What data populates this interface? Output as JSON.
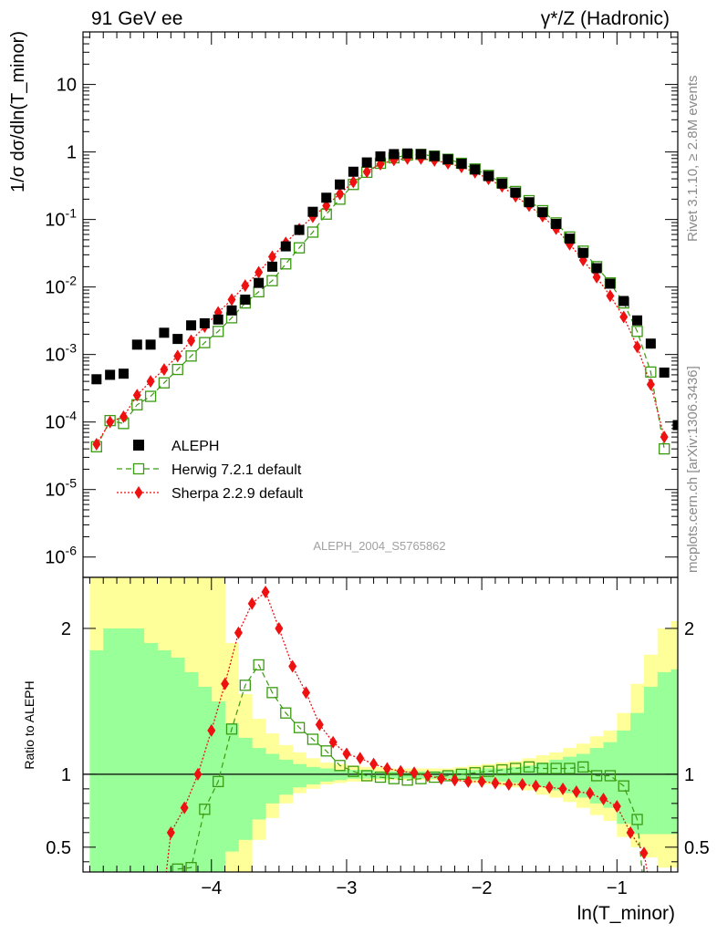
{
  "header": {
    "left": "91 GeV ee",
    "right": "γ*/Z (Hadronic)"
  },
  "side_labels": {
    "rivet": "Rivet 3.1.10, ≥ 2.8M events",
    "mcplots": "mcplots.cern.ch [arXiv:1306.3436]"
  },
  "watermark": "ALEPH_2004_S5765862",
  "colors": {
    "data": "#000000",
    "herwig": "#3a9a10",
    "sherpa": "#ee1111",
    "band_inner": "#99ff99",
    "band_outer": "#ffff99"
  },
  "chart_data": [
    {
      "type": "scatter",
      "panel": "main",
      "ylabel": "1/σ dσ/dln(T_minor)",
      "yscale": "log",
      "ylim": [
        5e-07,
        60
      ],
      "xlim": [
        -4.95,
        -0.55
      ],
      "yticks": [
        "10^-6",
        "10^-5",
        "10^-4",
        "10^-3",
        "10^-2",
        "10^-1",
        "1",
        "10"
      ],
      "legend_position": "lower-left",
      "series": [
        {
          "name": "ALEPH",
          "style": "filled-square",
          "x": [
            -4.85,
            -4.75,
            -4.65,
            -4.55,
            -4.45,
            -4.35,
            -4.25,
            -4.15,
            -4.05,
            -3.95,
            -3.85,
            -3.75,
            -3.65,
            -3.55,
            -3.45,
            -3.35,
            -3.25,
            -3.15,
            -3.05,
            -2.95,
            -2.85,
            -2.75,
            -2.65,
            -2.55,
            -2.45,
            -2.35,
            -2.25,
            -2.15,
            -2.05,
            -1.95,
            -1.85,
            -1.75,
            -1.65,
            -1.55,
            -1.45,
            -1.35,
            -1.25,
            -1.15,
            -1.05,
            -0.95,
            -0.85,
            -0.75,
            -0.65,
            -0.55
          ],
          "y": [
            0.00043,
            0.0005,
            0.00052,
            0.0014,
            0.0014,
            0.0021,
            0.0017,
            0.0027,
            0.0029,
            0.0033,
            0.0045,
            0.0065,
            0.0115,
            0.02,
            0.04,
            0.07,
            0.13,
            0.21,
            0.33,
            0.51,
            0.7,
            0.86,
            0.93,
            0.95,
            0.93,
            0.87,
            0.78,
            0.67,
            0.55,
            0.44,
            0.34,
            0.25,
            0.18,
            0.128,
            0.086,
            0.052,
            0.032,
            0.019,
            0.0112,
            0.0062,
            0.0032,
            0.00145,
            0.00054,
            9e-05
          ]
        },
        {
          "name": "Herwig 7.2.1 default",
          "style": "open-square-dashed",
          "x": [
            -4.85,
            -4.75,
            -4.65,
            -4.55,
            -4.45,
            -4.35,
            -4.25,
            -4.15,
            -4.05,
            -3.95,
            -3.85,
            -3.75,
            -3.65,
            -3.55,
            -3.45,
            -3.35,
            -3.25,
            -3.15,
            -3.05,
            -2.95,
            -2.85,
            -2.75,
            -2.65,
            -2.55,
            -2.45,
            -2.35,
            -2.25,
            -2.15,
            -2.05,
            -1.95,
            -1.85,
            -1.75,
            -1.65,
            -1.55,
            -1.45,
            -1.35,
            -1.25,
            -1.15,
            -1.05,
            -0.95,
            -0.85,
            -0.75,
            -0.65
          ],
          "y": [
            4.3e-05,
            0.000105,
            9.5e-05,
            0.00018,
            0.00024,
            0.00038,
            0.0006,
            0.00095,
            0.0015,
            0.0022,
            0.0035,
            0.0058,
            0.0085,
            0.0124,
            0.022,
            0.038,
            0.065,
            0.12,
            0.2,
            0.33,
            0.5,
            0.68,
            0.82,
            0.9,
            0.92,
            0.87,
            0.78,
            0.68,
            0.56,
            0.45,
            0.35,
            0.26,
            0.19,
            0.135,
            0.089,
            0.055,
            0.034,
            0.02,
            0.0115,
            0.0058,
            0.0022,
            0.00055,
            4e-05
          ]
        },
        {
          "name": "Sherpa 2.2.9 default",
          "style": "diamond-dotted",
          "x": [
            -4.85,
            -4.75,
            -4.65,
            -4.55,
            -4.45,
            -4.35,
            -4.25,
            -4.15,
            -4.05,
            -3.95,
            -3.85,
            -3.75,
            -3.65,
            -3.55,
            -3.45,
            -3.35,
            -3.25,
            -3.15,
            -3.05,
            -2.95,
            -2.85,
            -2.75,
            -2.65,
            -2.55,
            -2.45,
            -2.35,
            -2.25,
            -2.15,
            -2.05,
            -1.95,
            -1.85,
            -1.75,
            -1.65,
            -1.55,
            -1.45,
            -1.35,
            -1.25,
            -1.15,
            -1.05,
            -0.95,
            -0.85,
            -0.75,
            -0.65
          ],
          "y": [
            4.7e-05,
            0.0001,
            0.00012,
            0.00025,
            0.0004,
            0.0006,
            0.00095,
            0.0016,
            0.0026,
            0.0042,
            0.0065,
            0.0105,
            0.0165,
            0.028,
            0.045,
            0.072,
            0.11,
            0.16,
            0.24,
            0.36,
            0.51,
            0.66,
            0.76,
            0.8,
            0.8,
            0.75,
            0.68,
            0.6,
            0.5,
            0.4,
            0.31,
            0.22,
            0.16,
            0.112,
            0.073,
            0.043,
            0.025,
            0.014,
            0.0074,
            0.0036,
            0.0013,
            0.00036,
            6e-05
          ]
        }
      ]
    },
    {
      "type": "line",
      "panel": "ratio",
      "ylabel": "Ratio to ALEPH",
      "xlabel": "ln(T_minor)",
      "ylim": [
        0.33,
        2.35
      ],
      "xlim": [
        -4.95,
        -0.55
      ],
      "xticks": [
        "−4",
        "−3",
        "−2",
        "−1"
      ],
      "yticks": [
        "0.5",
        "1",
        "2"
      ],
      "band_bins": [
        -4.9,
        -4.8,
        -4.7,
        -4.6,
        -4.5,
        -4.4,
        -4.3,
        -4.2,
        -4.1,
        -4.0,
        -3.9,
        -3.8,
        -3.7,
        -3.6,
        -3.5,
        -3.4,
        -3.3,
        -3.2,
        -3.1,
        -3.0,
        -2.9,
        -2.8,
        -2.7,
        -2.6,
        -2.5,
        -2.4,
        -2.3,
        -2.2,
        -2.1,
        -2.0,
        -1.9,
        -1.8,
        -1.7,
        -1.6,
        -1.5,
        -1.4,
        -1.3,
        -1.2,
        -1.1,
        -1.0,
        -0.9,
        -0.8,
        -0.7,
        -0.6,
        -0.5
      ],
      "inner_band": {
        "lo": [
          0.33,
          0.33,
          0.33,
          0.33,
          0.33,
          0.33,
          0.33,
          0.33,
          0.33,
          0.33,
          0.47,
          0.55,
          0.69,
          0.8,
          0.86,
          0.91,
          0.93,
          0.95,
          0.96,
          0.97,
          0.97,
          0.97,
          0.97,
          0.97,
          0.97,
          0.97,
          0.97,
          0.96,
          0.96,
          0.95,
          0.95,
          0.94,
          0.93,
          0.91,
          0.89,
          0.87,
          0.84,
          0.8,
          0.77,
          0.66,
          0.59,
          0.59,
          0.59,
          0.59
        ],
        "hi": [
          1.85,
          2.0,
          2.0,
          2.0,
          1.9,
          1.85,
          1.8,
          1.7,
          1.6,
          1.5,
          1.35,
          1.25,
          1.18,
          1.14,
          1.1,
          1.07,
          1.05,
          1.04,
          1.03,
          1.03,
          1.03,
          1.02,
          1.02,
          1.02,
          1.02,
          1.02,
          1.02,
          1.03,
          1.03,
          1.04,
          1.04,
          1.05,
          1.06,
          1.08,
          1.1,
          1.12,
          1.14,
          1.18,
          1.22,
          1.3,
          1.42,
          1.6,
          1.7,
          1.72
        ]
      },
      "outer_band": {
        "lo": [
          0.33,
          0.33,
          0.33,
          0.33,
          0.33,
          0.33,
          0.33,
          0.33,
          0.33,
          0.33,
          0.33,
          0.33,
          0.55,
          0.7,
          0.8,
          0.87,
          0.9,
          0.93,
          0.94,
          0.95,
          0.95,
          0.96,
          0.96,
          0.96,
          0.96,
          0.96,
          0.96,
          0.95,
          0.94,
          0.93,
          0.92,
          0.91,
          0.89,
          0.86,
          0.84,
          0.81,
          0.77,
          0.72,
          0.68,
          0.57,
          0.5,
          0.43,
          0.36,
          0.36
        ],
        "hi": [
          2.35,
          2.35,
          2.35,
          2.35,
          2.35,
          2.35,
          2.35,
          2.35,
          2.35,
          2.35,
          1.9,
          1.55,
          1.38,
          1.28,
          1.2,
          1.15,
          1.11,
          1.08,
          1.07,
          1.06,
          1.05,
          1.05,
          1.04,
          1.04,
          1.04,
          1.04,
          1.04,
          1.05,
          1.06,
          1.07,
          1.08,
          1.09,
          1.11,
          1.13,
          1.15,
          1.18,
          1.21,
          1.26,
          1.3,
          1.42,
          1.62,
          1.82,
          2.0,
          2.05
        ]
      },
      "series": [
        {
          "name": "Herwig 7.2.1 default",
          "x": [
            -4.25,
            -4.15,
            -4.05,
            -3.95,
            -3.85,
            -3.75,
            -3.65,
            -3.55,
            -3.45,
            -3.35,
            -3.25,
            -3.15,
            -3.05,
            -2.95,
            -2.85,
            -2.75,
            -2.65,
            -2.55,
            -2.45,
            -2.35,
            -2.25,
            -2.15,
            -2.05,
            -1.95,
            -1.85,
            -1.75,
            -1.65,
            -1.55,
            -1.45,
            -1.35,
            -1.25,
            -1.15,
            -1.05,
            -0.95,
            -0.85
          ],
          "y": [
            0.35,
            0.36,
            0.76,
            0.95,
            1.31,
            1.61,
            1.75,
            1.56,
            1.42,
            1.32,
            1.24,
            1.16,
            1.06,
            1.02,
            0.99,
            0.98,
            0.97,
            0.96,
            0.97,
            0.98,
            0.99,
            1.0,
            1.01,
            1.02,
            1.03,
            1.04,
            1.05,
            1.04,
            1.04,
            1.04,
            1.05,
            0.99,
            0.99,
            0.92,
            0.69
          ]
        },
        {
          "name": "Sherpa 2.2.9 default",
          "x": [
            -4.3,
            -4.2,
            -4.1,
            -4.0,
            -3.9,
            -3.8,
            -3.7,
            -3.6,
            -3.5,
            -3.4,
            -3.3,
            -3.2,
            -3.1,
            -3.0,
            -2.9,
            -2.8,
            -2.7,
            -2.6,
            -2.5,
            -2.4,
            -2.3,
            -2.2,
            -2.1,
            -2.0,
            -1.9,
            -1.8,
            -1.7,
            -1.6,
            -1.5,
            -1.4,
            -1.3,
            -1.2,
            -1.1,
            -1.0,
            -0.9,
            -0.8
          ],
          "y": [
            0.6,
            0.77,
            1.0,
            1.3,
            1.62,
            1.97,
            2.17,
            2.25,
            2.0,
            1.74,
            1.56,
            1.34,
            1.22,
            1.14,
            1.11,
            1.07,
            1.04,
            1.02,
            1.01,
            0.99,
            0.97,
            0.96,
            0.95,
            0.95,
            0.94,
            0.93,
            0.93,
            0.92,
            0.91,
            0.9,
            0.88,
            0.87,
            0.83,
            0.78,
            0.6,
            0.46
          ]
        }
      ]
    }
  ]
}
